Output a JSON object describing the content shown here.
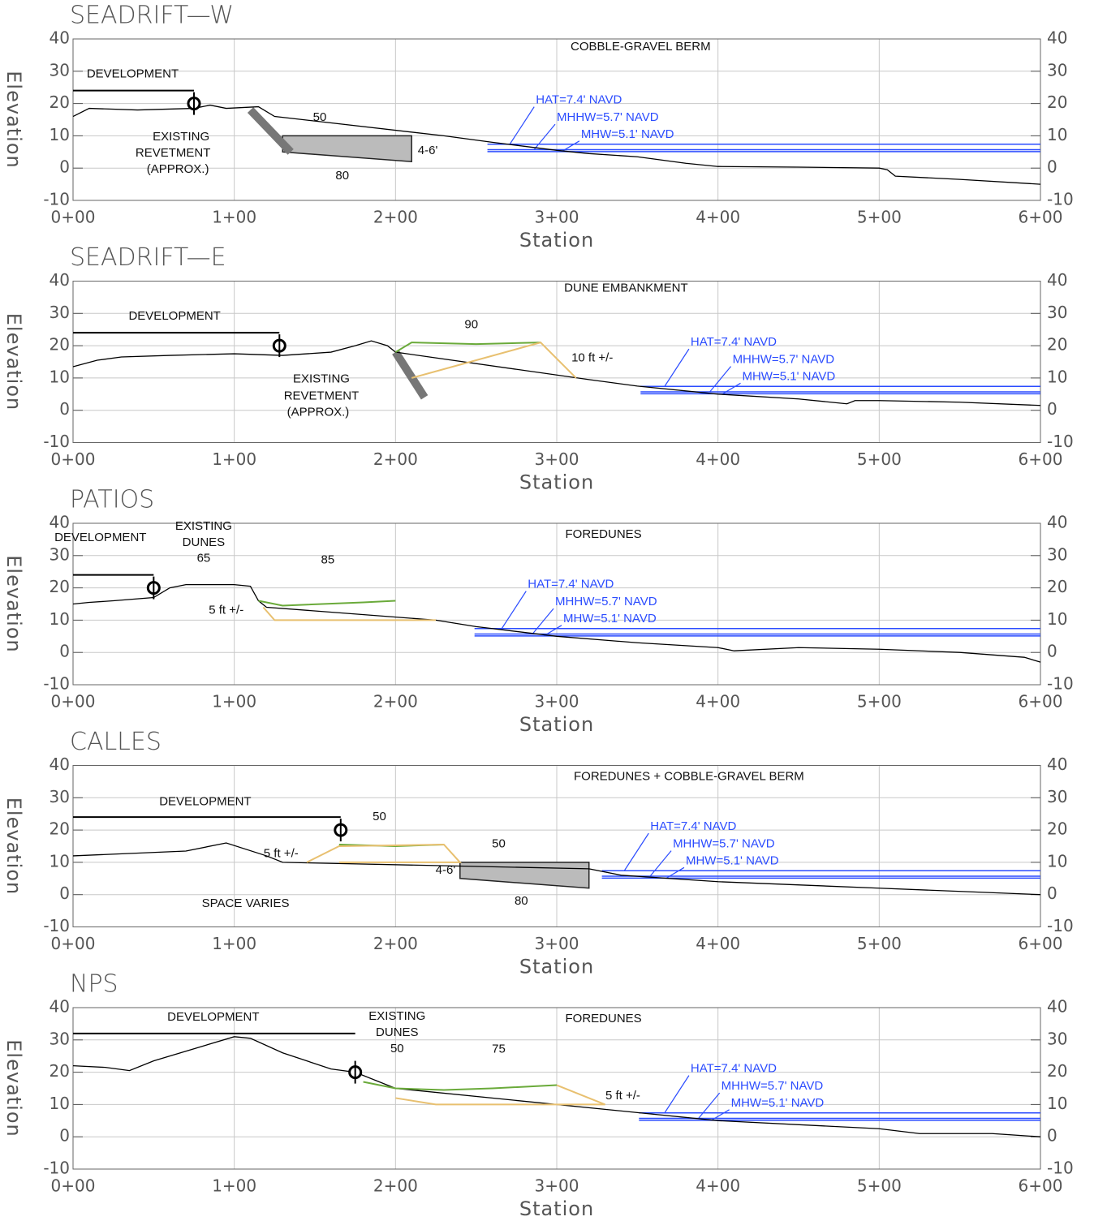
{
  "chart_data": [
    {
      "type": "line",
      "title": "SEADRIFT—W",
      "xlabel": "Station",
      "ylabel": "Elevation",
      "xlim": [
        0,
        600
      ],
      "ylim": [
        -10,
        40
      ],
      "xticks": [
        {
          "value": 0,
          "label": "0+00"
        },
        {
          "value": 100,
          "label": "1+00"
        },
        {
          "value": 200,
          "label": "2+00"
        },
        {
          "value": 300,
          "label": "3+00"
        },
        {
          "value": 400,
          "label": "4+00"
        },
        {
          "value": 500,
          "label": "5+00"
        },
        {
          "value": 600,
          "label": "6+00"
        }
      ],
      "yticks": [
        -10,
        0,
        10,
        20,
        30,
        40
      ],
      "grid": true,
      "series": [
        {
          "color": "#000000",
          "x": [
            0,
            10,
            40,
            75,
            85,
            95,
            115,
            125,
            230,
            260,
            300,
            320,
            350,
            380,
            400,
            450,
            500,
            505,
            510,
            550,
            600
          ],
          "values": [
            16,
            18.5,
            18,
            18.5,
            19.5,
            18.5,
            19,
            16,
            10,
            8,
            5.5,
            4.5,
            3.5,
            1.5,
            0.5,
            0.3,
            0,
            -0.5,
            -2.5,
            -3.5,
            -5
          ]
        }
      ],
      "levels": [
        {
          "label": "HAT=7.4' NAVD",
          "value": 7.4,
          "color": "#2b4cff"
        },
        {
          "label": "MHHW=5.7' NAVD",
          "value": 5.7,
          "color": "#2b4cff"
        },
        {
          "label": "MHW=5.1' NAVD",
          "value": 5.1,
          "color": "#2b4cff"
        }
      ],
      "annotations": [
        "COBBLE-GRAVEL BERM",
        "DEVELOPMENT",
        "EXISTING",
        "REVETMENT",
        "(APPROX.)",
        "50",
        "80",
        "4-6'"
      ]
    },
    {
      "type": "line",
      "title": "SEADRIFT—E",
      "xlabel": "Station",
      "ylabel": "Elevation",
      "xlim": [
        0,
        600
      ],
      "ylim": [
        -10,
        40
      ],
      "xticks": [
        {
          "value": 0,
          "label": "0+00"
        },
        {
          "value": 100,
          "label": "1+00"
        },
        {
          "value": 200,
          "label": "2+00"
        },
        {
          "value": 300,
          "label": "3+00"
        },
        {
          "value": 400,
          "label": "4+00"
        },
        {
          "value": 500,
          "label": "5+00"
        },
        {
          "value": 600,
          "label": "6+00"
        }
      ],
      "yticks": [
        -10,
        0,
        10,
        20,
        30,
        40
      ],
      "grid": true,
      "series": [
        {
          "color": "#000000",
          "x": [
            0,
            15,
            30,
            60,
            100,
            130,
            160,
            175,
            185,
            195,
            200,
            320,
            350,
            400,
            450,
            480,
            485,
            500,
            550,
            600
          ],
          "values": [
            13.5,
            15.5,
            16.5,
            17,
            17.5,
            17,
            18,
            20,
            21.5,
            20,
            18,
            9.5,
            7.5,
            5,
            3.5,
            2,
            3,
            3,
            2.5,
            1.5
          ]
        },
        {
          "color": "#6aaa3a",
          "x": [
            200,
            210,
            250,
            290
          ],
          "values": [
            18,
            21,
            20.5,
            21
          ]
        },
        {
          "color": "#e8c070",
          "x": [
            210,
            290,
            312
          ],
          "values": [
            10,
            21,
            10
          ]
        }
      ],
      "levels": [
        {
          "label": "HAT=7.4' NAVD",
          "value": 7.4,
          "color": "#2b4cff"
        },
        {
          "label": "MHHW=5.7' NAVD",
          "value": 5.7,
          "color": "#2b4cff"
        },
        {
          "label": "MHW=5.1' NAVD",
          "value": 5.1,
          "color": "#2b4cff"
        }
      ],
      "annotations": [
        "DUNE EMBANKMENT",
        "DEVELOPMENT",
        "90",
        "10 ft +/-",
        "EXISTING",
        "REVETMENT",
        "(APPROX.)"
      ]
    },
    {
      "type": "line",
      "title": "PATIOS",
      "xlabel": "Station",
      "ylabel": "Elevation",
      "xlim": [
        0,
        600
      ],
      "ylim": [
        -10,
        40
      ],
      "xticks": [
        {
          "value": 0,
          "label": "0+00"
        },
        {
          "value": 100,
          "label": "1+00"
        },
        {
          "value": 200,
          "label": "2+00"
        },
        {
          "value": 300,
          "label": "3+00"
        },
        {
          "value": 400,
          "label": "4+00"
        },
        {
          "value": 500,
          "label": "5+00"
        },
        {
          "value": 600,
          "label": "6+00"
        }
      ],
      "yticks": [
        -10,
        0,
        10,
        20,
        30,
        40
      ],
      "grid": true,
      "series": [
        {
          "color": "#000000",
          "x": [
            0,
            10,
            25,
            50,
            60,
            70,
            100,
            110,
            115,
            120,
            225,
            250,
            300,
            350,
            400,
            410,
            450,
            500,
            550,
            590,
            600
          ],
          "values": [
            15,
            15.5,
            16,
            17,
            20,
            21,
            21,
            20.5,
            16,
            14,
            10,
            8,
            5,
            3,
            1.5,
            0.5,
            1.5,
            1,
            0,
            -1.5,
            -3
          ]
        },
        {
          "color": "#6aaa3a",
          "x": [
            115,
            130,
            180,
            200
          ],
          "values": [
            16,
            14.5,
            15.5,
            16
          ]
        },
        {
          "color": "#e8c070",
          "x": [
            118,
            125,
            225
          ],
          "values": [
            14,
            10,
            10
          ]
        }
      ],
      "levels": [
        {
          "label": "HAT=7.4' NAVD",
          "value": 7.4,
          "color": "#2b4cff"
        },
        {
          "label": "MHHW=5.7' NAVD",
          "value": 5.7,
          "color": "#2b4cff"
        },
        {
          "label": "MHW=5.1' NAVD",
          "value": 5.1,
          "color": "#2b4cff"
        }
      ],
      "annotations": [
        "FOREDUNES",
        "DEVELOPMENT",
        "EXISTING",
        "DUNES",
        "65",
        "85",
        "5 ft +/-"
      ]
    },
    {
      "type": "line",
      "title": "CALLES",
      "xlabel": "Station",
      "ylabel": "Elevation",
      "xlim": [
        0,
        600
      ],
      "ylim": [
        -10,
        40
      ],
      "xticks": [
        {
          "value": 0,
          "label": "0+00"
        },
        {
          "value": 100,
          "label": "1+00"
        },
        {
          "value": 200,
          "label": "2+00"
        },
        {
          "value": 300,
          "label": "3+00"
        },
        {
          "value": 400,
          "label": "4+00"
        },
        {
          "value": 500,
          "label": "5+00"
        },
        {
          "value": 600,
          "label": "6+00"
        }
      ],
      "yticks": [
        -10,
        0,
        10,
        20,
        30,
        40
      ],
      "grid": true,
      "series": [
        {
          "color": "#000000",
          "x": [
            0,
            70,
            95,
            120,
            130,
            320,
            340,
            400,
            500,
            600
          ],
          "values": [
            12,
            13.5,
            16,
            12,
            10,
            8,
            6,
            4,
            2,
            0
          ]
        },
        {
          "color": "#6aaa3a",
          "x": [
            165,
            200,
            230
          ],
          "values": [
            15.5,
            15,
            15.5
          ]
        },
        {
          "color": "#e8c070",
          "x": [
            145,
            165,
            230,
            240,
            165
          ],
          "values": [
            10,
            15,
            15.5,
            10,
            10
          ]
        }
      ],
      "levels": [
        {
          "label": "HAT=7.4' NAVD",
          "value": 7.4,
          "color": "#2b4cff"
        },
        {
          "label": "MHHW=5.7' NAVD",
          "value": 5.7,
          "color": "#2b4cff"
        },
        {
          "label": "MHW=5.1' NAVD",
          "value": 5.1,
          "color": "#2b4cff"
        }
      ],
      "annotations": [
        "FOREDUNES  + COBBLE-GRAVEL BERM",
        "DEVELOPMENT",
        "50",
        "5 ft +/-",
        "50",
        "4-6'",
        "80",
        "SPACE VARIES"
      ]
    },
    {
      "type": "line",
      "title": "NPS",
      "xlabel": "Station",
      "ylabel": "Elevation",
      "xlim": [
        0,
        600
      ],
      "ylim": [
        -10,
        40
      ],
      "xticks": [
        {
          "value": 0,
          "label": "0+00"
        },
        {
          "value": 100,
          "label": "1+00"
        },
        {
          "value": 200,
          "label": "2+00"
        },
        {
          "value": 300,
          "label": "3+00"
        },
        {
          "value": 400,
          "label": "4+00"
        },
        {
          "value": 500,
          "label": "5+00"
        },
        {
          "value": 600,
          "label": "6+00"
        }
      ],
      "yticks": [
        -10,
        0,
        10,
        20,
        30,
        40
      ],
      "grid": true,
      "series": [
        {
          "color": "#000000",
          "x": [
            0,
            20,
            35,
            50,
            80,
            100,
            110,
            130,
            160,
            175,
            200,
            350,
            400,
            500,
            525,
            570,
            600
          ],
          "values": [
            22,
            21.5,
            20.5,
            23.5,
            28,
            31,
            30.5,
            26,
            21,
            20,
            15,
            7.5,
            5,
            2.5,
            1,
            1,
            0
          ]
        },
        {
          "color": "#6aaa3a",
          "x": [
            180,
            200,
            230,
            260,
            300
          ],
          "values": [
            17,
            15,
            14.5,
            15,
            16
          ]
        },
        {
          "color": "#e8c070",
          "x": [
            200,
            225,
            330,
            300
          ],
          "values": [
            12,
            10,
            10,
            16
          ]
        }
      ],
      "levels": [
        {
          "label": "HAT=7.4' NAVD",
          "value": 7.4,
          "color": "#2b4cff"
        },
        {
          "label": "MHHW=5.7' NAVD",
          "value": 5.7,
          "color": "#2b4cff"
        },
        {
          "label": "MHW=5.1' NAVD",
          "value": 5.1,
          "color": "#2b4cff"
        }
      ],
      "annotations": [
        "FOREDUNES",
        "DEVELOPMENT",
        "EXISTING",
        "DUNES",
        "50",
        "75",
        "5 ft +/-"
      ]
    }
  ]
}
